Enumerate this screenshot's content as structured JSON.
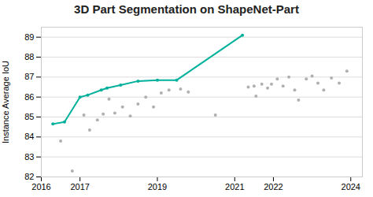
{
  "chart_data": {
    "type": "line",
    "title": "3D Part Segmentation on ShapeNet-Part",
    "ylabel": "Instance Average IoU",
    "xlim": [
      2016,
      2024.3
    ],
    "ylim": [
      82,
      89.5
    ],
    "xticks": [
      2016,
      2017,
      2019,
      2021,
      2022,
      2024
    ],
    "yticks": [
      82,
      83,
      84,
      85,
      86,
      87,
      88,
      89
    ],
    "grid": "y",
    "series": [
      {
        "type": "scatter",
        "color": "#b0b0b0",
        "marker": "circle",
        "x": [
          2016.5,
          2016.8,
          2017.1,
          2017.25,
          2017.45,
          2017.6,
          2017.75,
          2017.9,
          2018.1,
          2018.3,
          2018.5,
          2018.7,
          2018.9,
          2019.1,
          2019.3,
          2019.6,
          2019.8,
          2020.5,
          2021.35,
          2021.5,
          2021.55,
          2021.7,
          2021.85,
          2021.95,
          2022.1,
          2022.25,
          2022.4,
          2022.55,
          2022.65,
          2022.85,
          2023.0,
          2023.15,
          2023.3,
          2023.5,
          2023.7,
          2023.9
        ],
        "values": [
          83.8,
          82.3,
          85.1,
          84.35,
          84.85,
          85.15,
          85.9,
          85.2,
          85.5,
          85.05,
          85.65,
          86.0,
          85.5,
          86.2,
          86.35,
          86.4,
          86.25,
          85.1,
          86.5,
          86.55,
          86.05,
          86.65,
          86.45,
          86.65,
          86.9,
          86.55,
          87.0,
          86.35,
          85.85,
          86.9,
          87.05,
          86.7,
          86.35,
          86.95,
          86.7,
          87.3
        ]
      },
      {
        "type": "line",
        "color": "#00b09b",
        "marker": "circle",
        "x": [
          2016.3,
          2016.6,
          2017.0,
          2017.2,
          2017.55,
          2017.7,
          2018.05,
          2018.5,
          2019.0,
          2019.5,
          2021.2
        ],
        "values": [
          84.65,
          84.75,
          86.0,
          86.1,
          86.35,
          86.45,
          86.6,
          86.8,
          86.85,
          86.85,
          89.1
        ]
      }
    ]
  }
}
